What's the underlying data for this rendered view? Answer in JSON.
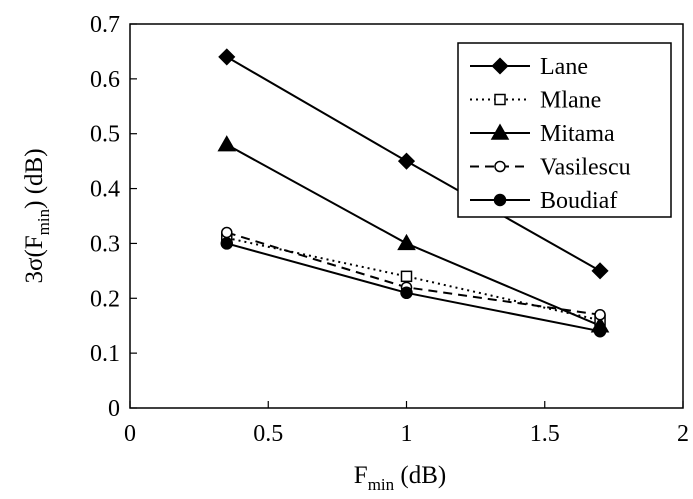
{
  "chart_data": {
    "type": "line",
    "title": "",
    "xlabel": {
      "main": "F",
      "sub": "min",
      "unit": " (dB)"
    },
    "ylabel": {
      "pre": "3σ(F",
      "sub": "min",
      "post": ") (dB)"
    },
    "xlim": [
      0,
      2
    ],
    "ylim": [
      0,
      0.7
    ],
    "xticks": [
      "0",
      "0.5",
      "1",
      "1.5",
      "2"
    ],
    "yticks": [
      "0",
      "0.1",
      "0.2",
      "0.3",
      "0.4",
      "0.5",
      "0.6",
      "0.7"
    ],
    "x": [
      0.35,
      1.0,
      1.7
    ],
    "legend_position": "top-right",
    "series": [
      {
        "name": "Lane",
        "values": [
          0.64,
          0.45,
          0.25
        ],
        "marker": "diamond",
        "line": "solid"
      },
      {
        "name": "Mlane",
        "values": [
          0.31,
          0.24,
          0.16
        ],
        "marker": "square-open",
        "line": "dotted"
      },
      {
        "name": "Mitama",
        "values": [
          0.48,
          0.3,
          0.15
        ],
        "marker": "triangle",
        "line": "solid"
      },
      {
        "name": "Vasilescu",
        "values": [
          0.32,
          0.22,
          0.17
        ],
        "marker": "circle-open",
        "line": "dashed"
      },
      {
        "name": "Boudiaf",
        "values": [
          0.3,
          0.21,
          0.14
        ],
        "marker": "circle",
        "line": "solid"
      }
    ]
  }
}
